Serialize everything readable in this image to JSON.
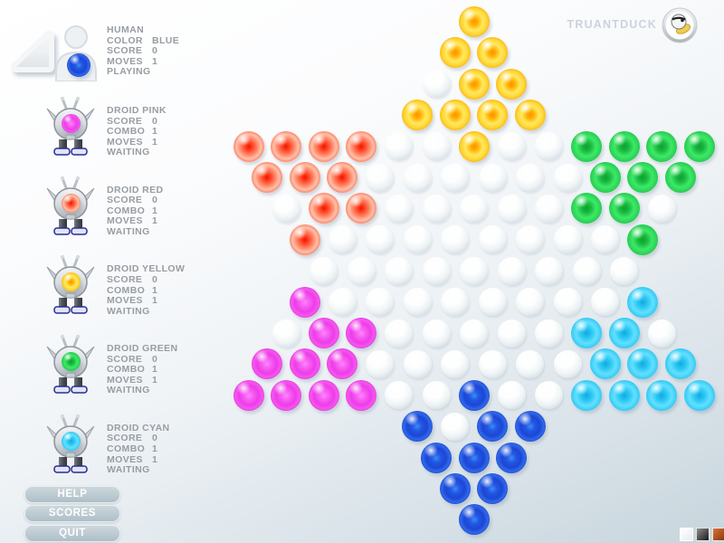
{
  "brand": {
    "name": "TRUANTDUCK"
  },
  "icons": {
    "brand_logo": "duck-icon",
    "turn_indicator": "wedge-left",
    "human": "person-icon",
    "droid": "robot-icon"
  },
  "players": [
    {
      "kind": "human",
      "name": "HUMAN",
      "marble_color": "blue",
      "status": "PLAYING",
      "stats": [
        {
          "label": "COLOR",
          "value": "BLUE"
        },
        {
          "label": "SCORE",
          "value": "0"
        },
        {
          "label": "MOVES",
          "value": "1"
        }
      ]
    },
    {
      "kind": "droid",
      "name": "DROID PINK",
      "marble_color": "magenta",
      "status": "WAITING",
      "stats": [
        {
          "label": "SCORE",
          "value": "0"
        },
        {
          "label": "COMBO",
          "value": "1"
        },
        {
          "label": "MOVES",
          "value": "1"
        }
      ]
    },
    {
      "kind": "droid",
      "name": "DROID RED",
      "marble_color": "red",
      "status": "WAITING",
      "stats": [
        {
          "label": "SCORE",
          "value": "0"
        },
        {
          "label": "COMBO",
          "value": "1"
        },
        {
          "label": "MOVES",
          "value": "1"
        }
      ]
    },
    {
      "kind": "droid",
      "name": "DROID YELLOW",
      "marble_color": "yellow",
      "status": "WAITING",
      "stats": [
        {
          "label": "SCORE",
          "value": "0"
        },
        {
          "label": "COMBO",
          "value": "1"
        },
        {
          "label": "MOVES",
          "value": "1"
        }
      ]
    },
    {
      "kind": "droid",
      "name": "DROID GREEN",
      "marble_color": "green",
      "status": "WAITING",
      "stats": [
        {
          "label": "SCORE",
          "value": "0"
        },
        {
          "label": "COMBO",
          "value": "1"
        },
        {
          "label": "MOVES",
          "value": "1"
        }
      ]
    },
    {
      "kind": "droid",
      "name": "DROID CYAN",
      "marble_color": "cyan",
      "status": "WAITING",
      "stats": [
        {
          "label": "SCORE",
          "value": "0"
        },
        {
          "label": "COMBO",
          "value": "1"
        },
        {
          "label": "MOVES",
          "value": "1"
        }
      ]
    }
  ],
  "menu_buttons": [
    {
      "label": "HELP"
    },
    {
      "label": "SCORES"
    },
    {
      "label": "QUIT"
    }
  ],
  "swatches": [
    {
      "name": "white"
    },
    {
      "name": "black"
    },
    {
      "name": "orange"
    }
  ],
  "colors": {
    "yellow": "#ffcc00",
    "red": "#e83418",
    "green": "#1fc84a",
    "magenta": "#e23ae2",
    "cyan": "#29c5f2",
    "blue": "#2050dd",
    "empty_hole": "#dfe7eb",
    "sidebar_text": "#989da3",
    "brand_text": "#cdd3dc"
  },
  "board": {
    "type": "chinese-checkers",
    "rows": [
      "Y",
      "YY",
      ".YY",
      "YYYY",
      "RRRR..Y..GGGG",
      "RRR......GGG",
      ".RR.....GG.",
      "R........G",
      ".........",
      "M........C",
      ".MM.....CC.",
      "MMM......CCC",
      "MMMM..B..CCCC",
      "B.BB",
      "BBB",
      "BB",
      "B"
    ],
    "legend": {
      "Y": "yellow",
      "R": "red",
      "G": "green",
      "M": "magenta",
      "C": "cyan",
      "B": "blue",
      ".": "empty"
    }
  }
}
